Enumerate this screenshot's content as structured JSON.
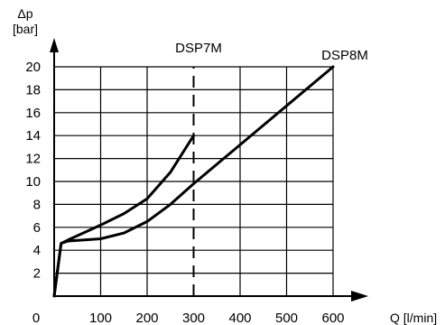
{
  "chart_data": {
    "type": "line",
    "ylabel_symbol": "Δp",
    "ylabel_unit": "[bar]",
    "xlabel": "Q [l/min]",
    "x_ticks": [
      "0",
      "100",
      "200",
      "300",
      "400",
      "500",
      "600"
    ],
    "y_ticks": [
      "2",
      "4",
      "6",
      "8",
      "10",
      "12",
      "14",
      "16",
      "18",
      "20"
    ],
    "xlim": [
      0,
      650
    ],
    "ylim": [
      0,
      21
    ],
    "grid": true,
    "series": [
      {
        "name": "DSP7M",
        "points": [
          [
            0,
            0
          ],
          [
            15,
            4.6
          ],
          [
            30,
            4.9
          ],
          [
            100,
            6.2
          ],
          [
            150,
            7.2
          ],
          [
            200,
            8.5
          ],
          [
            250,
            10.8
          ],
          [
            300,
            14
          ]
        ]
      },
      {
        "name": "DSP8M",
        "points": [
          [
            0,
            0
          ],
          [
            15,
            4.6
          ],
          [
            30,
            4.8
          ],
          [
            100,
            5.0
          ],
          [
            150,
            5.5
          ],
          [
            200,
            6.5
          ],
          [
            250,
            8.0
          ],
          [
            300,
            9.8
          ],
          [
            400,
            13.2
          ],
          [
            500,
            16.6
          ],
          [
            600,
            20
          ]
        ]
      }
    ],
    "marker_line": {
      "x": 300,
      "ymax": 20,
      "style": "dashed"
    }
  }
}
